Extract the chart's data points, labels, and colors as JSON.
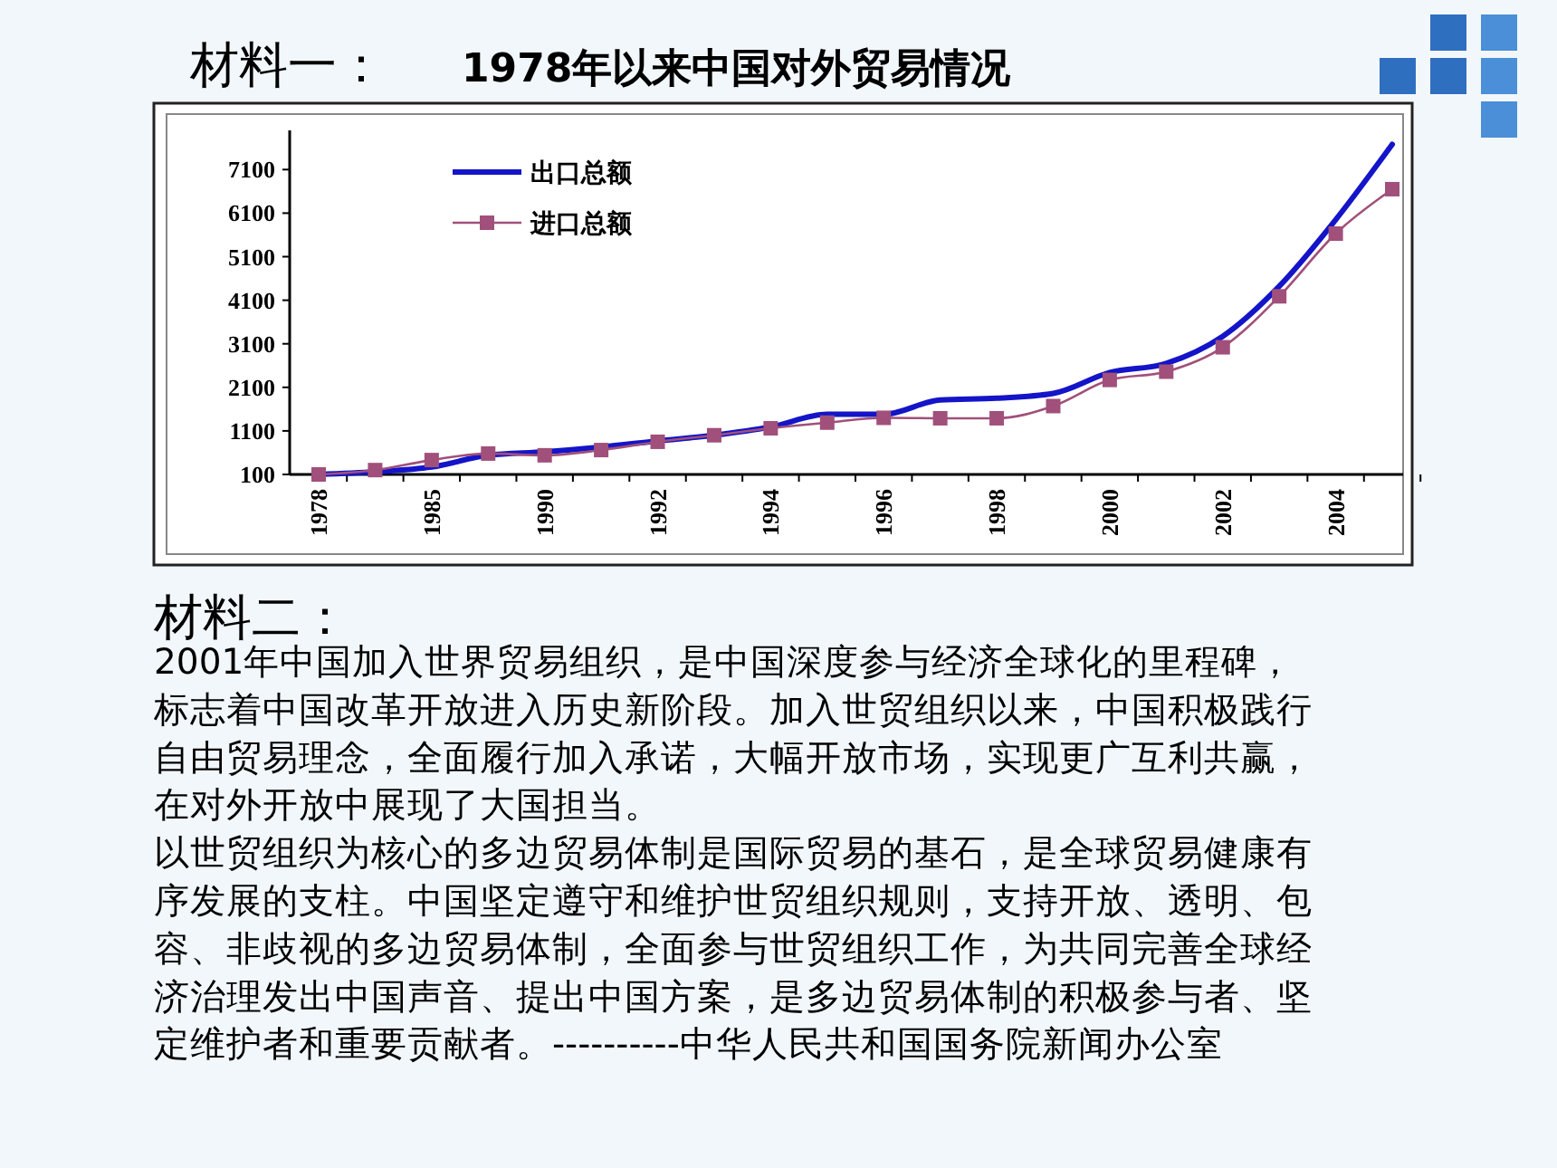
{
  "chart_data": {
    "type": "line",
    "title": "1978年以来中国对外贸易情况",
    "categories": [
      "1978",
      null,
      "1985",
      null,
      "1990",
      null,
      "1992",
      null,
      "1994",
      null,
      "1996",
      null,
      "1998",
      null,
      "2000",
      null,
      "2002",
      null,
      "2004",
      null
    ],
    "series": [
      {
        "name": "出口总额",
        "color": "#1414c8",
        "marker": "none",
        "values": [
          100,
          160,
          270,
          540,
          620,
          730,
          870,
          1000,
          1190,
          1480,
          1480,
          1810,
          1850,
          1960,
          2440,
          2650,
          3270,
          4420,
          5950,
          7680
        ]
      },
      {
        "name": "进口总额",
        "color": "#a0507a",
        "marker": "square",
        "values": [
          100,
          200,
          430,
          580,
          540,
          660,
          850,
          1000,
          1160,
          1290,
          1400,
          1390,
          1390,
          1670,
          2270,
          2460,
          3020,
          4190,
          5630,
          6650
        ]
      }
    ],
    "ylim": [
      100,
      8000
    ],
    "yticks": [
      100,
      1100,
      2100,
      3100,
      4100,
      5100,
      6100,
      7100
    ],
    "grid": false,
    "legend": "top left",
    "annotations": [
      "材料一：",
      "材料二：",
      "2001年中国加入世界贸易组织，是中国深度参与经济全球化的里程碑，",
      "标志着中国改革开放进入历史新阶段。加入世贸组织以来，中国积极践行",
      "自由贸易理念，全面履行加入承诺，大幅开放市场，实现更广互利共赢，",
      "在对外开放中展现了大国担当。",
      "以世贸组织为核心的多边贸易体制是国际贸易的基石，是全球贸易健康有",
      "序发展的支柱。中国坚定遵守和维护世贸组织规则，支持开放、透明、包",
      "容、非歧视的多边贸易体制，全面参与世贸组织工作，为共同完善全球经",
      "济治理发出中国声音、提出中国方案，是多边贸易体制的积极参与者、坚",
      "定维护者和重要贡献者。----------中华人民共和国国务院新闻办公室"
    ]
  }
}
